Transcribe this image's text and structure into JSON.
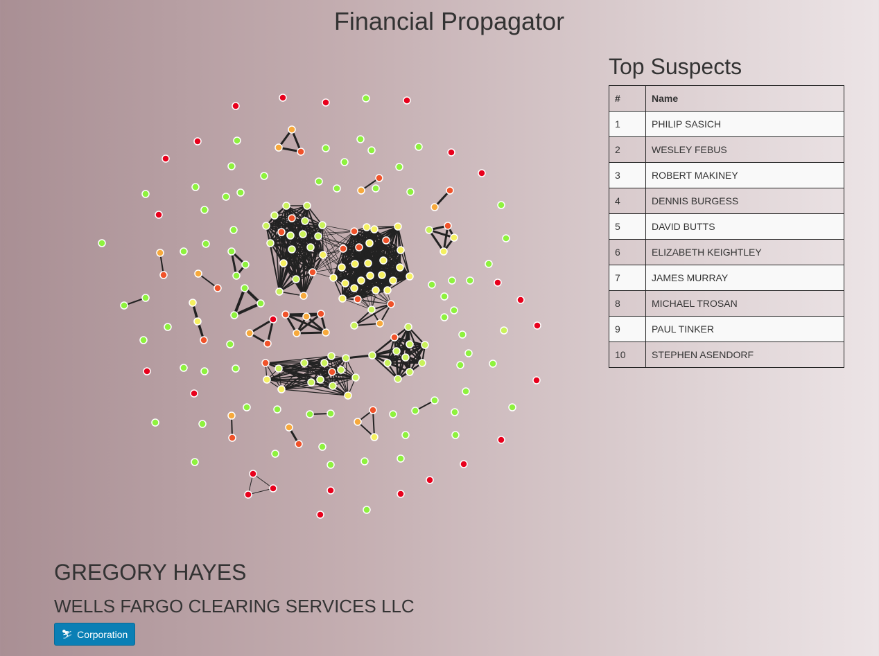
{
  "app": {
    "title": "Financial Propagator"
  },
  "suspects": {
    "heading": "Top Suspects",
    "columns": [
      "#",
      "Name"
    ],
    "rows": [
      [
        "1",
        "PHILIP SASICH"
      ],
      [
        "2",
        "WESLEY FEBUS"
      ],
      [
        "3",
        "ROBERT MAKINEY"
      ],
      [
        "4",
        "DENNIS BURGESS"
      ],
      [
        "5",
        "DAVID BUTTS"
      ],
      [
        "6",
        "ELIZABETH KEIGHTLEY"
      ],
      [
        "7",
        "JAMES MURRAY"
      ],
      [
        "8",
        "MICHAEL TROSAN"
      ],
      [
        "9",
        "PAUL TINKER"
      ],
      [
        "10",
        "STEPHEN ASENDORF"
      ]
    ]
  },
  "selected": {
    "name": "GREGORY HAYES",
    "firm": "WELLS FARGO CLEARING SERVICES LLC",
    "type_label": "Corporation",
    "type_icon": "skier-icon"
  },
  "graph": {
    "node_colors": {
      "red": "#e8001c",
      "orange_red": "#f0522a",
      "orange": "#f7a93c",
      "yellow": "#f5f060",
      "yellow_green": "#c9f25a",
      "green": "#8ef23e"
    },
    "link_color": "#222222"
  }
}
